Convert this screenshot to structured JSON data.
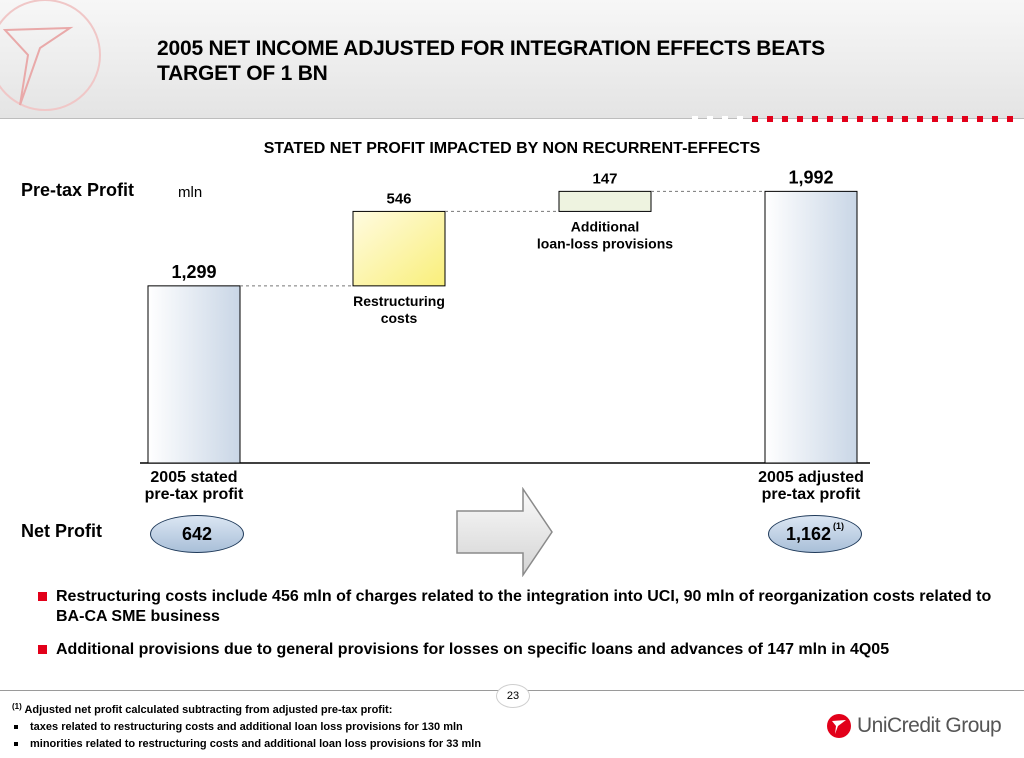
{
  "header": {
    "title_line1": "2005 NET INCOME ADJUSTED FOR INTEGRATION EFFECTS BEATS",
    "title_line2": "TARGET OF 1 BN"
  },
  "subtitle": "STATED NET PROFIT IMPACTED BY NON RECURRENT-EFFECTS",
  "pretax_label": "Pre-tax Profit",
  "unit": "mln",
  "chart_data": {
    "type": "bar",
    "variant": "waterfall",
    "ylim": [
      0,
      2200
    ],
    "steps": [
      {
        "label_lines": [
          "2005 stated",
          "pre-tax profit"
        ],
        "value": 1299,
        "value_label": "1,299",
        "kind": "total",
        "color": "#dfe7f1"
      },
      {
        "label_lines": [
          "Restructuring",
          "costs"
        ],
        "value": 546,
        "value_label": "546",
        "kind": "increment",
        "color": "#fbf59a"
      },
      {
        "label_lines": [
          "Additional",
          "loan-loss provisions"
        ],
        "value": 147,
        "value_label": "147",
        "kind": "increment",
        "color": "#eef3e0"
      },
      {
        "label_lines": [
          "2005 adjusted",
          "pre-tax profit"
        ],
        "value": 1992,
        "value_label": "1,992",
        "kind": "total",
        "color": "#dfe7f1"
      }
    ]
  },
  "net_profit": {
    "label": "Net Profit",
    "stated": "642",
    "adjusted": "1,162",
    "adjusted_note": "(1)"
  },
  "bullets": [
    "Restructuring costs include 456 mln of charges related to the integration into UCI, 90 mln of reorganization costs related to BA-CA SME business",
    "Additional provisions due to general provisions for losses on specific loans and advances of 147 mln in 4Q05"
  ],
  "page_number": "23",
  "footnotes": {
    "marker": "(1)",
    "intro": "Adjusted net profit calculated subtracting from adjusted pre-tax profit:",
    "items": [
      "taxes related to restructuring costs and additional loan loss provisions for 130 mln",
      "minorities related to restructuring costs and additional loan loss provisions for 33 mln"
    ]
  },
  "brand": {
    "name": "UniCredit Group",
    "color": "#e2001a"
  }
}
